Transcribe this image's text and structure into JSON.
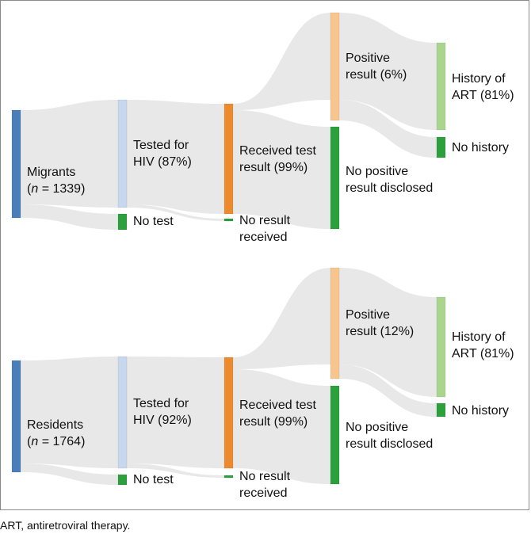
{
  "colors": {
    "node_origin": "#4a7ebb",
    "node_tested": "#c6d7ee",
    "node_received": "#ee8a2e",
    "node_positive": "#f9c58e",
    "node_no": "#2ca03c",
    "node_history": "#a9d58e",
    "link": "#e5e5e5",
    "frame": "#8a8a8a"
  },
  "panels": [
    {
      "group": "migrants",
      "origin_name": "Migrants",
      "n_prefix": "n",
      "n_value": "= 1339)",
      "tested_label": "Tested for\nHIV (87%)",
      "no_test_label": "No test",
      "received_label": "Received test\nresult (99%)",
      "no_result_label": "No result\nreceived",
      "positive_label": "Positive\nresult (6%)",
      "no_positive_label": "No positive\nresult disclosed",
      "history_label": "History of\nART (81%)",
      "no_history_label": "No history",
      "percent_tested": 87,
      "percent_received": 99,
      "percent_positive": 6,
      "percent_history": 81
    },
    {
      "group": "residents",
      "origin_name": "Residents",
      "n_prefix": "n",
      "n_value": "= 1764)",
      "tested_label": "Tested for\nHIV (92%)",
      "no_test_label": "No test",
      "received_label": "Received test\nresult (99%)",
      "no_result_label": "No result\nreceived",
      "positive_label": "Positive\nresult (12%)",
      "no_positive_label": "No positive\nresult disclosed",
      "history_label": "History of\nART (81%)",
      "no_history_label": "No history",
      "percent_tested": 92,
      "percent_received": 99,
      "percent_positive": 12,
      "percent_history": 81
    }
  ],
  "footnote": "ART, antiretroviral therapy."
}
